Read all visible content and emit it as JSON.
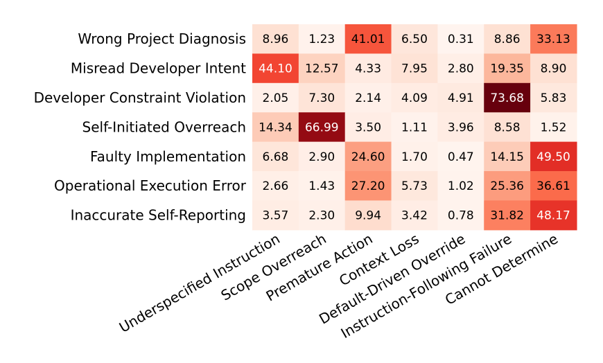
{
  "chart_data": {
    "type": "heatmap",
    "rows": [
      "Wrong Project Diagnosis",
      "Misread Developer Intent",
      "Developer Constraint Violation",
      "Self-Initiated Overreach",
      "Faulty Implementation",
      "Operational Execution Error",
      "Inaccurate Self-Reporting"
    ],
    "columns": [
      "Underspecified Instruction",
      "Scope Overreach",
      "Premature Action",
      "Context Loss",
      "Default-Driven Override",
      "Instruction-Following Failure",
      "Cannot Determine"
    ],
    "values": [
      [
        "8.96",
        "1.23",
        "41.01",
        "6.50",
        "0.31",
        "8.86",
        "33.13"
      ],
      [
        "44.10",
        "12.57",
        "4.33",
        "7.95",
        "2.80",
        "19.35",
        "8.90"
      ],
      [
        "2.05",
        "7.30",
        "2.14",
        "4.09",
        "4.91",
        "73.68",
        "5.83"
      ],
      [
        "14.34",
        "66.99",
        "3.50",
        "1.11",
        "3.96",
        "8.58",
        "1.52"
      ],
      [
        "6.68",
        "2.90",
        "24.60",
        "1.70",
        "0.47",
        "14.15",
        "49.50"
      ],
      [
        "2.66",
        "1.43",
        "27.20",
        "5.73",
        "1.02",
        "25.36",
        "36.61"
      ],
      [
        "3.57",
        "2.30",
        "9.94",
        "3.42",
        "0.78",
        "31.82",
        "48.17"
      ]
    ],
    "color_scale": "Reds",
    "vmin": 0,
    "vmax": 73.68,
    "grid": false,
    "legend": "none"
  }
}
